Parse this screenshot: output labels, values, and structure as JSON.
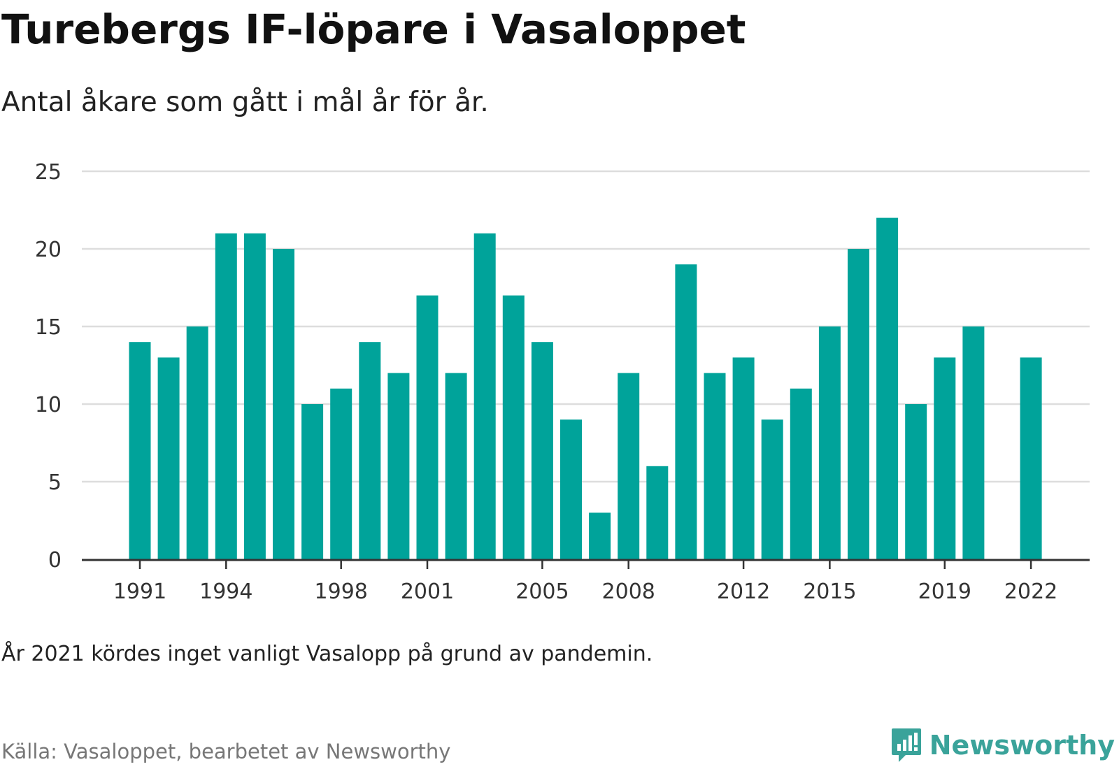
{
  "header": {
    "title": "Turebergs IF-löpare i Vasaloppet",
    "subtitle": "Antal åkare som gått i mål år för år."
  },
  "footer": {
    "note": "År 2021 kördes inget vanligt Vasalopp på grund av pandemin.",
    "source": "Källa: Vasaloppet, bearbetet av Newsworthy",
    "brand": "Newsworthy",
    "brand_icon": "newsworthy-logo-icon"
  },
  "colors": {
    "bar": "#00a39a",
    "grid": "#dddddd",
    "axis": "#333333",
    "brand": "#3aa39a"
  },
  "chart_data": {
    "type": "bar",
    "x": [
      1991,
      1992,
      1993,
      1994,
      1995,
      1996,
      1997,
      1998,
      1999,
      2000,
      2001,
      2002,
      2003,
      2004,
      2005,
      2006,
      2007,
      2008,
      2009,
      2010,
      2011,
      2012,
      2013,
      2014,
      2015,
      2016,
      2017,
      2018,
      2019,
      2020,
      2021,
      2022
    ],
    "values": [
      14,
      13,
      15,
      21,
      21,
      20,
      10,
      11,
      14,
      12,
      17,
      12,
      21,
      17,
      14,
      9,
      3,
      12,
      6,
      19,
      12,
      13,
      9,
      11,
      15,
      20,
      22,
      10,
      13,
      15,
      null,
      13
    ],
    "x_ticks": [
      "1991",
      "1994",
      "1998",
      "2001",
      "2005",
      "2008",
      "2012",
      "2015",
      "2019",
      "2022"
    ],
    "y_ticks": [
      "0",
      "5",
      "10",
      "15",
      "20",
      "25"
    ],
    "ylim": [
      0,
      25
    ],
    "grid": true,
    "legend": "none"
  }
}
